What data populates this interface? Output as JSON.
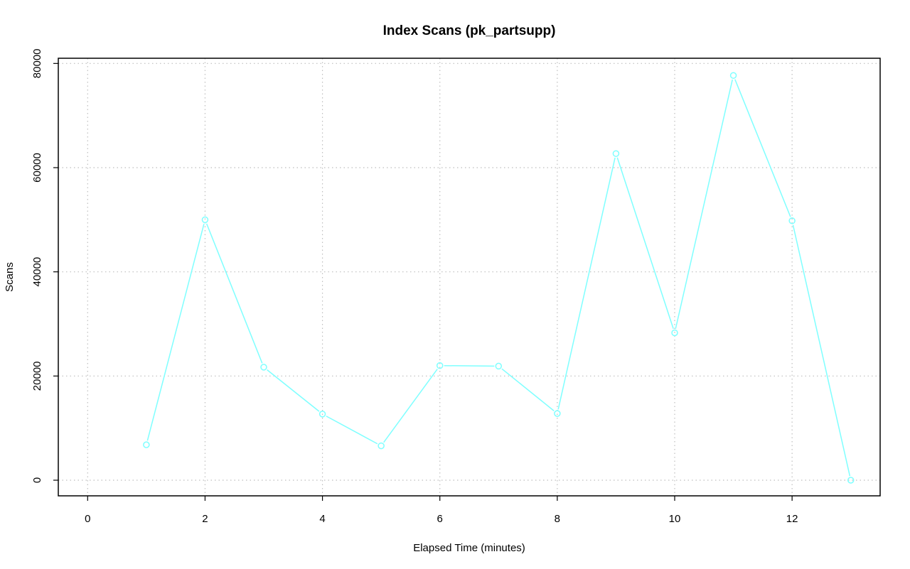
{
  "chart_data": {
    "type": "line",
    "title": "Index Scans (pk_partsupp)",
    "xlabel": "Elapsed Time (minutes)",
    "ylabel": "Scans",
    "xlim": [
      -0.5,
      13.5
    ],
    "ylim": [
      -3000,
      81000
    ],
    "x_ticks": [
      0,
      2,
      4,
      6,
      8,
      10,
      12
    ],
    "y_ticks": [
      0,
      20000,
      40000,
      60000,
      80000
    ],
    "grid": true,
    "series": [
      {
        "color": "#7fffff",
        "marker": "circle",
        "x": [
          1,
          2,
          3,
          4,
          5,
          6,
          7,
          8,
          9,
          10,
          11,
          12,
          13
        ],
        "values": [
          6800,
          50000,
          21700,
          12700,
          6600,
          22000,
          21900,
          12800,
          62700,
          28300,
          77700,
          49800,
          0
        ]
      }
    ]
  }
}
